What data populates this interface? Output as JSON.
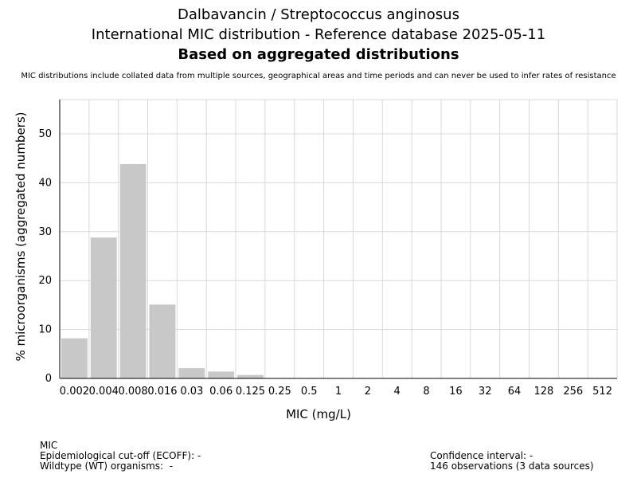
{
  "header": {
    "title_line1": "Dalbavancin / Streptococcus anginosus",
    "title_line2": "International MIC distribution - Reference database 2025-05-11",
    "title_line3": "Based on aggregated distributions",
    "disclaimer": "MIC distributions include collated data from multiple sources, geographical areas and time periods and can never be used to infer rates of resistance"
  },
  "chart_data": {
    "type": "bar",
    "categories": [
      "0.002",
      "0.004",
      "0.008",
      "0.016",
      "0.03",
      "0.06",
      "0.125",
      "0.25",
      "0.5",
      "1",
      "2",
      "4",
      "8",
      "16",
      "32",
      "64",
      "128",
      "256",
      "512"
    ],
    "values": [
      8.2,
      28.8,
      43.8,
      15.1,
      2.1,
      1.4,
      0.7,
      0,
      0,
      0,
      0,
      0,
      0,
      0,
      0,
      0,
      0,
      0,
      0
    ],
    "xlabel": "MIC (mg/L)",
    "ylabel": "% microorganisms (aggregated numbers)",
    "ylim": [
      0,
      57
    ],
    "yticks": [
      0,
      10,
      20,
      30,
      40,
      50
    ],
    "grid": true,
    "bar_color": "#c8c8c8"
  },
  "footer": {
    "mic_label": "MIC",
    "ecoff": "Epidemiological cut-off (ECOFF): -",
    "wildtype": "Wildtype (WT) organisms:  -",
    "confidence": "Confidence interval: -",
    "observations": "146 observations (3 data sources)"
  }
}
